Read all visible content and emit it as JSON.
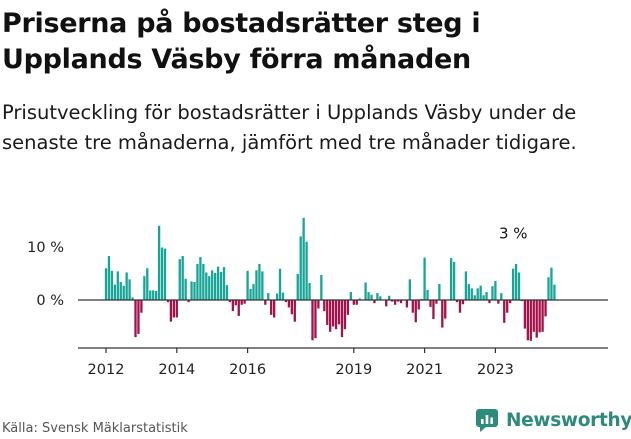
{
  "title": "Priserna på bostadsrätter steg i Upplands Väsby förra månaden",
  "subtitle": "Prisutveckling för bostadsrätter i Upplands Väsby under de senaste tre månaderna, jämfört med tre månader tidigare.",
  "source": "Källa: Svensk Mäklarstatistik",
  "logo_text": "Newsworthy",
  "colors": {
    "positive": "#17a598",
    "negative": "#a3104a",
    "axis": "#333333",
    "logo": "#2e8b7c"
  },
  "chart_data": {
    "type": "bar",
    "title": "",
    "xlabel": "",
    "ylabel": "",
    "ylim": [
      -8.5,
      16
    ],
    "y_ticks": [
      0,
      10
    ],
    "y_tick_labels": [
      "0 %",
      "10 %"
    ],
    "x_ticks": [
      2012,
      2014,
      2016,
      2019,
      2021,
      2023
    ],
    "x_tick_labels": [
      "2012",
      "2014",
      "2016",
      "2019",
      "2021",
      "2023"
    ],
    "start": 2012.0,
    "step": 0.08333,
    "values": [
      6.0,
      8.3,
      5.5,
      2.9,
      5.4,
      3.4,
      2.7,
      5.2,
      3.9,
      0.5,
      -7.0,
      -6.4,
      -2.4,
      4.5,
      6.0,
      1.8,
      1.8,
      1.7,
      14.0,
      9.9,
      9.7,
      -0.4,
      -4.1,
      -3.3,
      -3.3,
      7.7,
      8.3,
      4.0,
      -0.4,
      3.5,
      3.4,
      6.8,
      8.1,
      6.8,
      5.2,
      4.5,
      5.6,
      5.1,
      6.3,
      5.3,
      6.2,
      2.8,
      -0.4,
      -2.1,
      -1.0,
      -3.0,
      -0.9,
      -0.7,
      5.5,
      2.1,
      3.0,
      5.6,
      6.8,
      5.4,
      -0.9,
      1.3,
      -2.8,
      -3.3,
      1.2,
      5.9,
      1.4,
      -0.4,
      -1.4,
      -2.7,
      -4.1,
      4.9,
      12.0,
      15.5,
      11.0,
      3.2,
      -7.6,
      -7.2,
      -1.6,
      4.7,
      -2.1,
      -4.7,
      -6.0,
      -5.0,
      -5.5,
      -4.6,
      -7.0,
      -5.5,
      -2.8,
      1.5,
      -0.9,
      -0.9,
      0.3,
      0.1,
      3.3,
      1.5,
      1.0,
      -0.6,
      1.3,
      0.7,
      0.1,
      -1.2,
      0.8,
      -0.3,
      -0.9,
      -0.3,
      -0.6,
      0.1,
      -1.4,
      3.9,
      -2.4,
      -4.2,
      -1.8,
      0.2,
      8.0,
      1.9,
      -1.3,
      -3.6,
      -0.7,
      3.0,
      -5.2,
      -3.5,
      0.1,
      7.9,
      7.2,
      -0.4,
      -2.4,
      -0.8,
      5.4,
      3.0,
      2.2,
      0.9,
      2.2,
      2.7,
      0.9,
      1.5,
      -0.6,
      2.6,
      3.6,
      -0.7,
      1.3,
      -4.3,
      -2.4,
      -0.6,
      5.9,
      6.8,
      5.2,
      -0.2,
      -5.4,
      -7.6,
      -7.7,
      -6.0,
      -7.1,
      -6.1,
      -6.0,
      -3.1,
      4.3,
      6.1,
      2.9
    ],
    "annotations": [
      {
        "text": "3 %",
        "x": 2023.25,
        "y": 2.9
      }
    ]
  }
}
